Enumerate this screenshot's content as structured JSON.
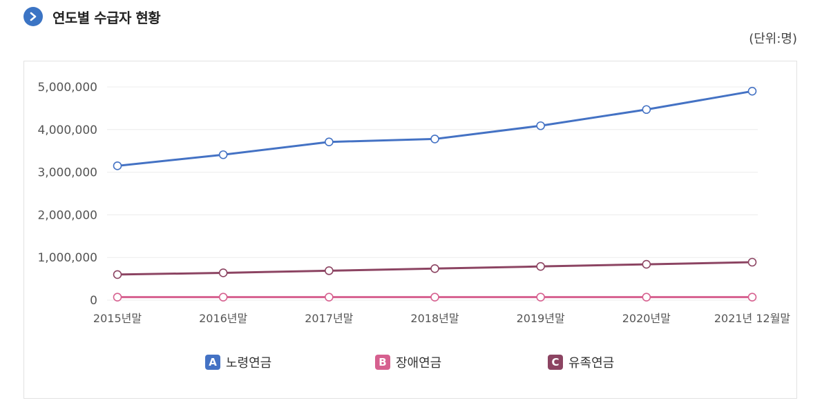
{
  "header": {
    "title": "연도별 수급자 현황",
    "icon": "chevron-right-icon"
  },
  "unit_label": "(단위:명)",
  "chart_data": {
    "type": "line",
    "title": "연도별 수급자 현황",
    "xlabel": "",
    "ylabel": "",
    "categories": [
      "2015년말",
      "2016년말",
      "2017년말",
      "2018년말",
      "2019년말",
      "2020년말",
      "2021년 12월말"
    ],
    "ylim": [
      0,
      5000000
    ],
    "yticks": [
      0,
      1000000,
      2000000,
      3000000,
      4000000,
      5000000
    ],
    "ytick_labels": [
      "0",
      "1,000,000",
      "2,000,000",
      "3,000,000",
      "4,000,000",
      "5,000,000"
    ],
    "grid": true,
    "legend_position": "bottom",
    "series": [
      {
        "name": "노령연금",
        "badge": "A",
        "color": "#4472c4",
        "values": [
          3150000,
          3410000,
          3710000,
          3780000,
          4090000,
          4470000,
          4900000
        ]
      },
      {
        "name": "장애연금",
        "badge": "B",
        "color": "#d6608f",
        "values": [
          70000,
          70000,
          70000,
          70000,
          70000,
          70000,
          70000
        ]
      },
      {
        "name": "유족연금",
        "badge": "C",
        "color": "#8c4462",
        "values": [
          600000,
          640000,
          690000,
          740000,
          790000,
          840000,
          890000
        ]
      }
    ]
  }
}
